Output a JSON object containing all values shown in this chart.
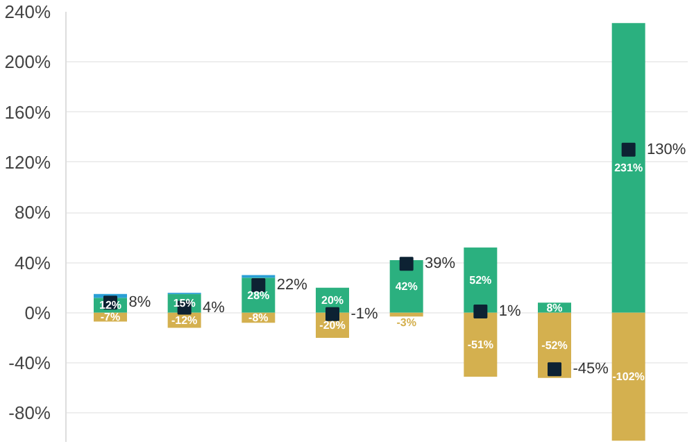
{
  "chart_data": {
    "type": "bar",
    "stacked": true,
    "categories": [
      null,
      null,
      null,
      null,
      null,
      null,
      null,
      null
    ],
    "series": [
      {
        "color": "#2bb07f",
        "values": [
          12,
          15,
          28,
          20,
          42,
          52,
          8,
          231
        ],
        "value_labels": [
          "12%",
          "15%",
          "28%",
          "20%",
          "42%",
          "52%",
          "8%",
          "231%"
        ]
      },
      {
        "color": "#2a9fd6",
        "values": [
          3,
          1,
          2,
          0,
          0,
          0,
          0,
          0
        ]
      },
      {
        "color": "#d4b04f",
        "values": [
          -7,
          -12,
          -8,
          -20,
          -3,
          -51,
          -52,
          -102
        ],
        "value_labels": [
          "-7%",
          "-12%",
          "-8%",
          "-20%",
          "-3%",
          "-51%",
          "-52%",
          "-102%"
        ]
      },
      {
        "type": "scatter",
        "marker": "square",
        "color": "#0d2233",
        "values": [
          8,
          4,
          22,
          -1,
          39,
          1,
          -45,
          130
        ],
        "value_labels": [
          "8%",
          "4%",
          "22%",
          "-1%",
          "39%",
          "1%",
          "-45%",
          "130%"
        ]
      }
    ],
    "ylim": [
      -103,
      240
    ],
    "yticks": [
      {
        "value": -80,
        "label": "-80%"
      },
      {
        "value": -40,
        "label": "-40%"
      },
      {
        "value": 0,
        "label": "0%"
      },
      {
        "value": 40,
        "label": "40%"
      },
      {
        "value": 80,
        "label": "80%"
      },
      {
        "value": 120,
        "label": "120%"
      },
      {
        "value": 160,
        "label": "160%"
      },
      {
        "value": 200,
        "label": "200%"
      },
      {
        "value": 240,
        "label": "240%"
      }
    ],
    "grid": "y",
    "tick_labels": "y"
  }
}
